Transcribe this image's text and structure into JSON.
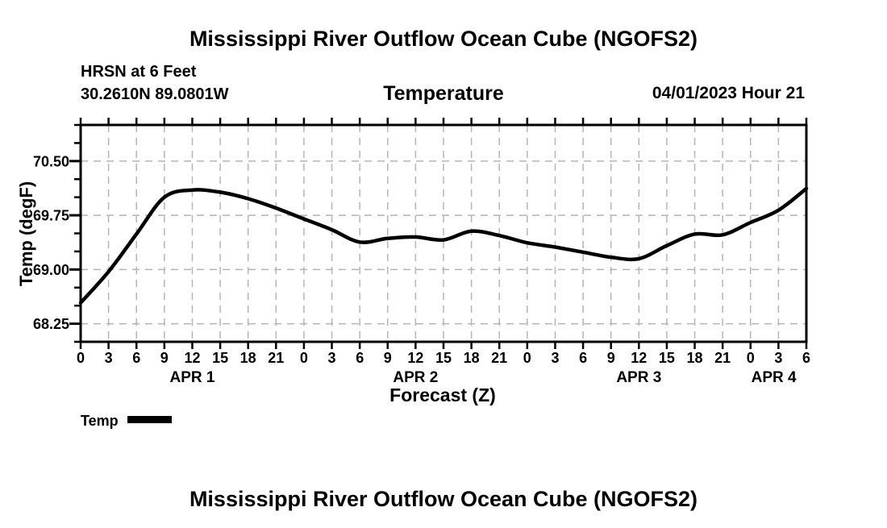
{
  "header": {
    "title": "Mississippi River Outflow Ocean Cube (NGOFS2)",
    "station_line": "HRSN at 6 Feet",
    "coords_line": "30.2610N  89.0801W",
    "panel_title": "Temperature",
    "datetime_label": "04/01/2023 Hour 21"
  },
  "legend": {
    "label": "Temp",
    "swatch_color": "#000000"
  },
  "footer": {
    "next_panel_title": "Mississippi River Outflow Ocean Cube (NGOFS2)"
  },
  "chart_data": {
    "type": "line",
    "title": "Temperature",
    "xlabel": "Forecast (Z)",
    "ylabel": "Temp (degF)",
    "xlim_hours": [
      0,
      78
    ],
    "ylim": [
      68.0,
      71.0
    ],
    "x_tick_step": 3,
    "x_hours": [
      0,
      3,
      6,
      9,
      12,
      15,
      18,
      21,
      24,
      27,
      30,
      33,
      36,
      39,
      42,
      45,
      48,
      51,
      54,
      57,
      60,
      63,
      66,
      69,
      72,
      75,
      78
    ],
    "x_tick_labels": [
      "0",
      "3",
      "6",
      "9",
      "12",
      "15",
      "18",
      "21",
      "0",
      "3",
      "6",
      "9",
      "12",
      "15",
      "18",
      "21",
      "0",
      "3",
      "6",
      "9",
      "12",
      "15",
      "18",
      "21",
      "0",
      "3",
      "6"
    ],
    "day_labels": [
      {
        "label": "APR 1",
        "hour": 12
      },
      {
        "label": "APR 2",
        "hour": 36
      },
      {
        "label": "APR 3",
        "hour": 60
      },
      {
        "label": "APR 4",
        "hour": 74.5
      }
    ],
    "series": [
      {
        "name": "Temp",
        "values": [
          68.54,
          68.97,
          69.49,
          70.0,
          70.1,
          70.07,
          69.98,
          69.85,
          69.7,
          69.55,
          69.38,
          69.43,
          69.45,
          69.41,
          69.53,
          69.47,
          69.37,
          69.31,
          69.24,
          69.17,
          69.15,
          69.33,
          69.49,
          69.48,
          69.65,
          69.82,
          70.12
        ]
      }
    ],
    "yticks_major": [
      68.25,
      69.0,
      69.75,
      70.5
    ],
    "ytick_labels": [
      "68.25",
      "69.00",
      "69.75",
      "70.50"
    ],
    "y_minor_step": 0.25,
    "grid": "dashed, vertical every 3h, horizontal at major yticks",
    "legend_position": "below-left",
    "line_color": "#000000",
    "grid_color": "#b5b5b5",
    "frame_color": "#000000",
    "background_color": "#ffffff"
  }
}
